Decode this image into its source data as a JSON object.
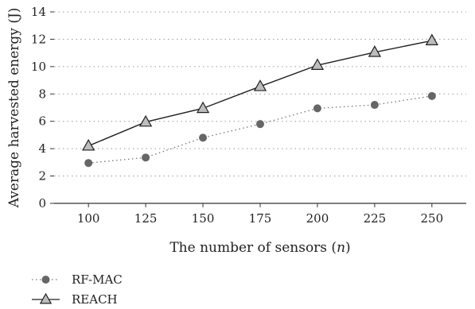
{
  "chart_data": {
    "type": "line",
    "title": "",
    "xlabel": "The number of sensors (",
    "xlabel_var": "n",
    "xlabel_end": ")",
    "ylabel": "Average harvested energy (J)",
    "x": [
      100,
      125,
      150,
      175,
      200,
      225,
      250
    ],
    "xlim": [
      85,
      265
    ],
    "ylim": [
      0,
      14
    ],
    "yticks": [
      0,
      2,
      4,
      6,
      8,
      10,
      12,
      14
    ],
    "grid": "horizontal dotted",
    "legend_position": "bottom-left, below plot",
    "series": [
      {
        "name": "RF-MAC",
        "values": [
          2.95,
          3.35,
          4.8,
          5.8,
          6.95,
          7.2,
          7.85
        ],
        "line_style": "dotted",
        "marker": "circle",
        "color": "#666666"
      },
      {
        "name": "REACH",
        "values": [
          4.2,
          5.95,
          6.95,
          8.55,
          10.1,
          11.05,
          11.9
        ],
        "line_style": "solid",
        "marker": "triangle",
        "color": "#222222",
        "marker_fill": "#bdbdbd"
      }
    ]
  }
}
